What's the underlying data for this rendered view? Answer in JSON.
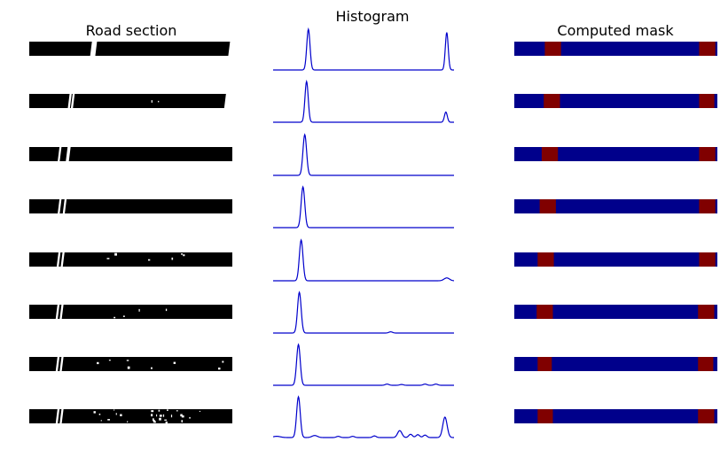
{
  "titles": {
    "road_section": "Road section",
    "histogram": "Histogram",
    "computed_mask": "Computed mask"
  },
  "colors": {
    "histogram_line": "#0000cc",
    "mask_background": "#00008b",
    "mask_lane": "#800000",
    "road_pixels": "#000000",
    "lane_pixels": "#ffffff"
  },
  "chart_data": [
    {
      "type": "line",
      "title": "Histogram",
      "xlabel": "",
      "ylabel": "",
      "xlim": [
        0,
        100
      ],
      "grid": false,
      "axes_visible": false,
      "series": [
        {
          "peaks": [
            {
              "x": 19.5,
              "h": 1.0,
              "w": 0.9
            },
            {
              "x": 96.0,
              "h": 0.92,
              "w": 0.8
            }
          ]
        },
        {
          "peaks": [
            {
              "x": 18.5,
              "h": 1.0,
              "w": 0.9
            },
            {
              "x": 95.5,
              "h": 0.25,
              "w": 0.8
            }
          ]
        },
        {
          "peaks": [
            {
              "x": 17.5,
              "h": 1.0,
              "w": 1.0
            }
          ]
        },
        {
          "peaks": [
            {
              "x": 16.5,
              "h": 1.0,
              "w": 1.0
            }
          ]
        },
        {
          "peaks": [
            {
              "x": 15.5,
              "h": 1.0,
              "w": 1.0
            },
            {
              "x": 96.0,
              "h": 0.07,
              "w": 1.5
            }
          ]
        },
        {
          "peaks": [
            {
              "x": 14.5,
              "h": 1.0,
              "w": 1.0
            },
            {
              "x": 65.0,
              "h": 0.03,
              "w": 1.0
            }
          ]
        },
        {
          "peaks": [
            {
              "x": 14.0,
              "h": 1.0,
              "w": 1.0
            },
            {
              "x": 63.0,
              "h": 0.03,
              "w": 1.0
            },
            {
              "x": 71.0,
              "h": 0.02,
              "w": 1.0
            },
            {
              "x": 84.0,
              "h": 0.03,
              "w": 1.0
            },
            {
              "x": 90.0,
              "h": 0.03,
              "w": 1.0
            }
          ]
        },
        {
          "peaks": [
            {
              "x": 14.0,
              "h": 1.0,
              "w": 1.0
            },
            {
              "x": 2.0,
              "h": 0.03,
              "w": 2.0
            },
            {
              "x": 23.0,
              "h": 0.05,
              "w": 1.5
            },
            {
              "x": 36.0,
              "h": 0.03,
              "w": 1.0
            },
            {
              "x": 44.0,
              "h": 0.03,
              "w": 1.0
            },
            {
              "x": 56.0,
              "h": 0.04,
              "w": 1.0
            },
            {
              "x": 70.0,
              "h": 0.17,
              "w": 1.2
            },
            {
              "x": 76.0,
              "h": 0.08,
              "w": 1.0
            },
            {
              "x": 80.0,
              "h": 0.07,
              "w": 1.0
            },
            {
              "x": 84.0,
              "h": 0.06,
              "w": 1.0
            },
            {
              "x": 95.0,
              "h": 0.5,
              "w": 1.2
            }
          ]
        }
      ]
    },
    {
      "type": "heatmap",
      "title": "Computed mask",
      "xlim": [
        0,
        100
      ],
      "values_note": "",
      "rows": [
        {
          "lanes": [
            [
              15,
              23
            ],
            [
              91,
              99
            ]
          ]
        },
        {
          "lanes": [
            [
              14.5,
              22.5
            ],
            [
              91,
              98.5
            ]
          ]
        },
        {
          "lanes": [
            [
              13.5,
              21.5
            ],
            [
              91,
              99
            ]
          ]
        },
        {
          "lanes": [
            [
              12.5,
              20.5
            ],
            [
              91,
              99
            ]
          ]
        },
        {
          "lanes": [
            [
              11.5,
              19.5
            ],
            [
              91,
              99
            ]
          ]
        },
        {
          "lanes": [
            [
              11,
              19
            ],
            [
              90.5,
              98.5
            ]
          ]
        },
        {
          "lanes": [
            [
              11.5,
              18.5
            ],
            [
              90.5,
              98
            ]
          ]
        },
        {
          "lanes": [
            [
              11.5,
              19
            ],
            [
              90.5,
              98.5
            ]
          ]
        }
      ]
    }
  ],
  "road_sections": [
    {
      "gaps": [
        [
          30,
          32.5
        ],
        [
          98,
          100
        ]
      ],
      "specks": 0
    },
    {
      "gaps": [
        [
          19,
          20
        ],
        [
          20.5,
          21.5
        ],
        [
          96,
          100
        ]
      ],
      "specks": 2
    },
    {
      "gaps": [
        [
          14,
          15
        ],
        [
          18,
          19.5
        ]
      ],
      "specks": 0
    },
    {
      "gaps": [
        [
          14,
          15
        ],
        [
          16.5,
          17.5
        ]
      ],
      "specks": 0
    },
    {
      "gaps": [
        [
          13.5,
          14.5
        ],
        [
          15.5,
          16.5
        ]
      ],
      "specks": 6
    },
    {
      "gaps": [
        [
          13,
          14
        ],
        [
          15,
          16
        ]
      ],
      "specks": 4
    },
    {
      "gaps": [
        [
          13,
          14
        ],
        [
          15,
          16
        ]
      ],
      "specks": 8
    },
    {
      "gaps": [
        [
          13,
          14
        ],
        [
          15,
          16
        ]
      ],
      "specks": 28
    }
  ]
}
